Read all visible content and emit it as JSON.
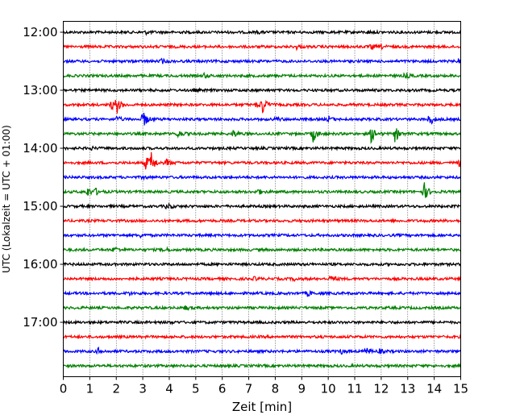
{
  "chart_data": {
    "type": "seismogram-helicorder",
    "xlabel": "Zeit  [min]",
    "ylabel": "UTC (Lokalzeit = UTC + 01:00)",
    "xlim": [
      0,
      15
    ],
    "x_ticks": [
      0,
      1,
      2,
      3,
      4,
      5,
      6,
      7,
      8,
      9,
      10,
      11,
      12,
      13,
      14,
      15
    ],
    "x_grid": "dotted vertical lines at every minute",
    "y_tick_labels": [
      "12:00",
      "13:00",
      "14:00",
      "15:00",
      "16:00",
      "17:00"
    ],
    "trace_colors": [
      "#000000",
      "#ff0000",
      "#0000ff",
      "#008000"
    ],
    "trace_interval_minutes": 15,
    "traces": [
      {
        "start": "12:00",
        "color": "#000000",
        "events": [
          {
            "t": 3.1,
            "a": 2
          },
          {
            "t": 7.3,
            "a": 1.5
          },
          {
            "t": 11.5,
            "a": 1.5
          }
        ]
      },
      {
        "start": "12:15",
        "color": "#ff0000",
        "events": [
          {
            "t": 8.8,
            "a": 2.5
          },
          {
            "t": 11.6,
            "a": 3.5
          },
          {
            "t": 12.0,
            "a": 2
          }
        ]
      },
      {
        "start": "12:30",
        "color": "#0000ff",
        "events": [
          {
            "t": 3.7,
            "a": 3
          },
          {
            "t": 14.9,
            "a": 3
          }
        ]
      },
      {
        "start": "12:45",
        "color": "#008000",
        "events": [
          {
            "t": 5.3,
            "a": 3
          },
          {
            "t": 12.9,
            "a": 4
          }
        ]
      },
      {
        "start": "13:00",
        "color": "#000000",
        "events": [
          {
            "t": 4.9,
            "a": 1.5
          }
        ]
      },
      {
        "start": "13:15",
        "color": "#ff0000",
        "events": [
          {
            "t": 1.8,
            "a": 6
          },
          {
            "t": 2.0,
            "a": 12
          },
          {
            "t": 7.5,
            "a": 12
          },
          {
            "t": 7.3,
            "a": 5
          }
        ]
      },
      {
        "start": "13:30",
        "color": "#0000ff",
        "events": [
          {
            "t": 2.0,
            "a": 4
          },
          {
            "t": 3.0,
            "a": 13
          },
          {
            "t": 8.0,
            "a": 3
          },
          {
            "t": 10.0,
            "a": 4
          },
          {
            "t": 13.8,
            "a": 10
          }
        ]
      },
      {
        "start": "13:45",
        "color": "#008000",
        "events": [
          {
            "t": 4.3,
            "a": 6
          },
          {
            "t": 6.4,
            "a": 5
          },
          {
            "t": 9.4,
            "a": 12
          },
          {
            "t": 11.6,
            "a": 12
          },
          {
            "t": 12.5,
            "a": 11
          }
        ]
      },
      {
        "start": "14:00",
        "color": "#000000",
        "events": [
          {
            "t": 1.0,
            "a": 2
          }
        ]
      },
      {
        "start": "14:15",
        "color": "#ff0000",
        "events": [
          {
            "t": 3.1,
            "a": 10
          },
          {
            "t": 3.3,
            "a": 13
          },
          {
            "t": 3.9,
            "a": 5
          },
          {
            "t": 14.9,
            "a": 5
          }
        ]
      },
      {
        "start": "14:30",
        "color": "#0000ff",
        "events": [
          {
            "t": 3.0,
            "a": 1.5
          }
        ]
      },
      {
        "start": "14:45",
        "color": "#008000",
        "events": [
          {
            "t": 0.9,
            "a": 6
          },
          {
            "t": 1.2,
            "a": 4
          },
          {
            "t": 7.3,
            "a": 5
          },
          {
            "t": 13.6,
            "a": 13
          }
        ]
      },
      {
        "start": "15:00",
        "color": "#000000",
        "events": [
          {
            "t": 3.9,
            "a": 5
          }
        ]
      },
      {
        "start": "15:15",
        "color": "#ff0000",
        "events": []
      },
      {
        "start": "15:30",
        "color": "#0000ff",
        "events": [
          {
            "t": 2.9,
            "a": 2
          }
        ]
      },
      {
        "start": "15:45",
        "color": "#008000",
        "events": [
          {
            "t": 1.9,
            "a": 4
          },
          {
            "t": 3.8,
            "a": 3
          }
        ]
      },
      {
        "start": "16:00",
        "color": "#000000",
        "events": []
      },
      {
        "start": "16:15",
        "color": "#ff0000",
        "events": [
          {
            "t": 7.2,
            "a": 2
          },
          {
            "t": 8.7,
            "a": 2
          },
          {
            "t": 10.1,
            "a": 5
          }
        ]
      },
      {
        "start": "16:30",
        "color": "#0000ff",
        "events": [
          {
            "t": 2.4,
            "a": 3
          },
          {
            "t": 9.2,
            "a": 4
          }
        ]
      },
      {
        "start": "16:45",
        "color": "#008000",
        "events": [
          {
            "t": 4.6,
            "a": 3
          }
        ]
      },
      {
        "start": "17:00",
        "color": "#000000",
        "events": [
          {
            "t": 4.0,
            "a": 1.5
          }
        ]
      },
      {
        "start": "17:15",
        "color": "#ff0000",
        "events": []
      },
      {
        "start": "17:30",
        "color": "#0000ff",
        "events": [
          {
            "t": 1.3,
            "a": 4
          },
          {
            "t": 10.5,
            "a": 3
          },
          {
            "t": 11.4,
            "a": 6
          },
          {
            "t": 11.9,
            "a": 3
          }
        ]
      },
      {
        "start": "17:45",
        "color": "#008000",
        "events": []
      }
    ]
  }
}
